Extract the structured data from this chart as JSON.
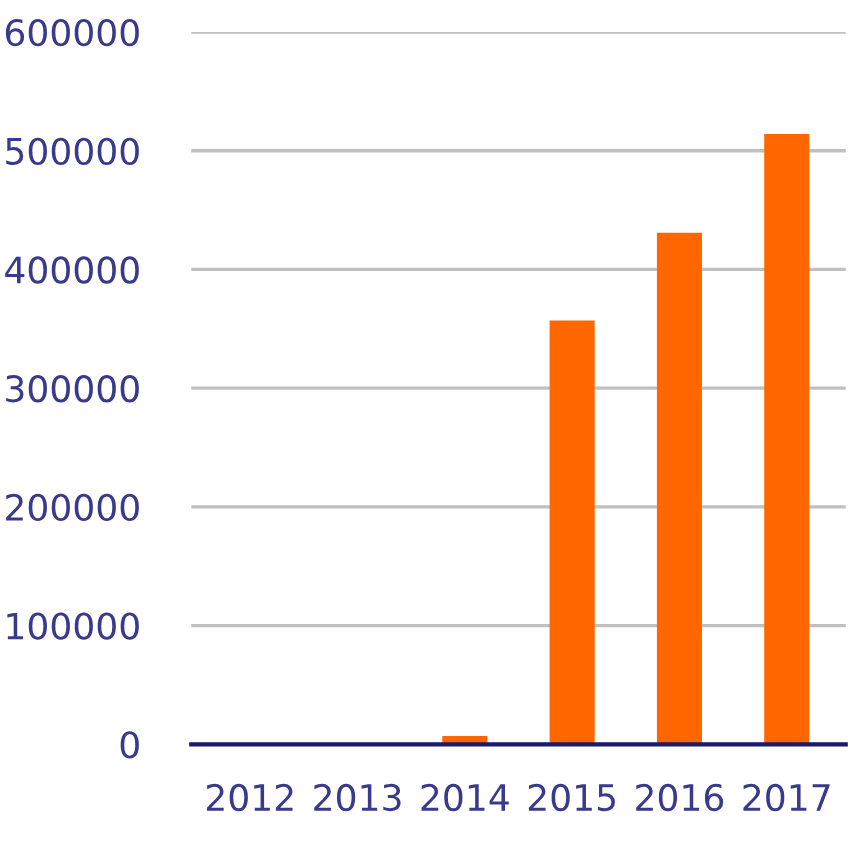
{
  "chart_data": {
    "type": "bar",
    "categories": [
      "2012",
      "2013",
      "2014",
      "2015",
      "2016",
      "2017"
    ],
    "values": [
      0,
      0,
      7000,
      357000,
      431000,
      514000
    ],
    "color": "#ff6600",
    "ylim": [
      0,
      600000
    ],
    "yticks": [
      0,
      100000,
      200000,
      300000,
      400000,
      500000,
      600000
    ],
    "grid": "y"
  }
}
